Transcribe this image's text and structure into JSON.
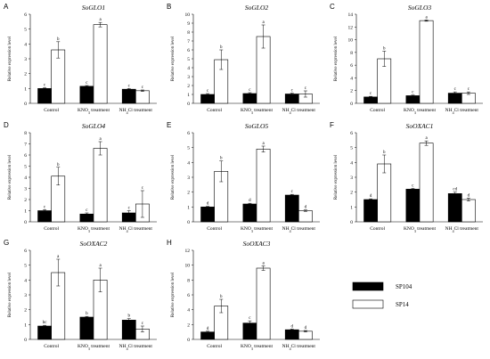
{
  "series_legend": [
    {
      "name": "SP104",
      "color": "#000000"
    },
    {
      "name": "SP14",
      "color": "#ffffff"
    }
  ],
  "chart_data": [
    {
      "letter": "A",
      "type": "bar",
      "title": "SoGLO1",
      "ylabel": "Relative expression level",
      "ylim": [
        0,
        6
      ],
      "ticks": [
        0,
        1,
        2,
        3,
        4,
        5,
        6
      ],
      "categories": [
        "Control",
        "KNO3 treatment",
        "NH4Cl treatment"
      ],
      "series": [
        {
          "name": "SP104",
          "values": [
            1.0,
            1.15,
            0.95
          ],
          "errors": [
            0.05,
            0.05,
            0.05
          ],
          "labels": [
            "c",
            "c",
            "c"
          ]
        },
        {
          "name": "SP14",
          "values": [
            3.6,
            5.3,
            0.85
          ],
          "errors": [
            0.55,
            0.15,
            0.05
          ],
          "labels": [
            "b",
            "a",
            "c"
          ]
        }
      ]
    },
    {
      "letter": "B",
      "type": "bar",
      "title": "SoGLO2",
      "ylabel": "Relative expression level",
      "ylim": [
        0,
        10
      ],
      "ticks": [
        0,
        1,
        2,
        3,
        4,
        5,
        6,
        7,
        8,
        9,
        10
      ],
      "categories": [
        "Control",
        "KNO3 treatment",
        "NH4Cl treatment"
      ],
      "series": [
        {
          "name": "SP104",
          "values": [
            1.0,
            1.1,
            1.05
          ],
          "errors": [
            0.1,
            0.1,
            0.1
          ],
          "labels": [
            "c",
            "c",
            "c"
          ]
        },
        {
          "name": "SP14",
          "values": [
            4.9,
            7.5,
            1.05
          ],
          "errors": [
            1.1,
            1.3,
            0.35
          ],
          "labels": [
            "b",
            "a",
            "c"
          ]
        }
      ]
    },
    {
      "letter": "C",
      "type": "bar",
      "title": "SoGLO3",
      "ylabel": "Relative expression level",
      "ylim": [
        0,
        14
      ],
      "ticks": [
        0,
        2,
        4,
        6,
        8,
        10,
        12,
        14
      ],
      "categories": [
        "Control",
        "KNO3 treatment",
        "NH4Cl treatment"
      ],
      "series": [
        {
          "name": "SP104",
          "values": [
            1.0,
            1.2,
            1.6
          ],
          "errors": [
            0.1,
            0.1,
            0.2
          ],
          "labels": [
            "c",
            "c",
            "c"
          ]
        },
        {
          "name": "SP14",
          "values": [
            7.0,
            13.0,
            1.6
          ],
          "errors": [
            1.2,
            0.1,
            0.2
          ],
          "labels": [
            "b",
            "a",
            "c"
          ]
        }
      ]
    },
    {
      "letter": "D",
      "type": "bar",
      "title": "SoGLO4",
      "ylabel": "Relative expression level",
      "ylim": [
        0,
        8
      ],
      "ticks": [
        0,
        1,
        2,
        3,
        4,
        5,
        6,
        7,
        8
      ],
      "categories": [
        "Control",
        "KNO3 treatment",
        "NH4Cl treatment"
      ],
      "series": [
        {
          "name": "SP104",
          "values": [
            1.0,
            0.7,
            0.8
          ],
          "errors": [
            0.1,
            0.1,
            0.2
          ],
          "labels": [
            "c",
            "c",
            "c"
          ]
        },
        {
          "name": "SP14",
          "values": [
            4.1,
            6.6,
            1.6
          ],
          "errors": [
            0.8,
            0.6,
            1.2
          ],
          "labels": [
            "b",
            "a",
            "c"
          ]
        }
      ]
    },
    {
      "letter": "E",
      "type": "bar",
      "title": "SoGLO5",
      "ylabel": "Relative expression level",
      "ylim": [
        0,
        6
      ],
      "ticks": [
        0,
        1,
        2,
        3,
        4,
        5,
        6
      ],
      "categories": [
        "Control",
        "KNO3 treatment",
        "NH4Cl treatment"
      ],
      "series": [
        {
          "name": "SP104",
          "values": [
            1.0,
            1.2,
            1.8
          ],
          "errors": [
            0.05,
            0.05,
            0.05
          ],
          "labels": [
            "d",
            "d",
            "c"
          ]
        },
        {
          "name": "SP14",
          "values": [
            3.4,
            4.9,
            0.75
          ],
          "errors": [
            0.7,
            0.2,
            0.05
          ],
          "labels": [
            "b",
            "a",
            "d"
          ]
        }
      ]
    },
    {
      "letter": "F",
      "type": "bar",
      "title": "SoOXAC1",
      "ylabel": "Relative expression level",
      "ylim": [
        0,
        6
      ],
      "ticks": [
        0,
        1,
        2,
        3,
        4,
        5,
        6
      ],
      "categories": [
        "Control",
        "KNO3 treatment",
        "NH4Cl treatment"
      ],
      "series": [
        {
          "name": "SP104",
          "values": [
            1.5,
            2.2,
            1.9
          ],
          "errors": [
            0.05,
            0.05,
            0.1
          ],
          "labels": [
            "d",
            "c",
            "cd"
          ]
        },
        {
          "name": "SP14",
          "values": [
            3.9,
            5.3,
            1.5
          ],
          "errors": [
            0.6,
            0.15,
            0.1
          ],
          "labels": [
            "b",
            "a",
            "d"
          ]
        }
      ]
    },
    {
      "letter": "G",
      "type": "bar",
      "title": "SoOXAC2",
      "ylabel": "Relative expression level",
      "ylim": [
        0,
        6
      ],
      "ticks": [
        0,
        1,
        2,
        3,
        4,
        5,
        6
      ],
      "categories": [
        "Control",
        "KNO3 treatment",
        "NH4Cl treatment"
      ],
      "series": [
        {
          "name": "SP104",
          "values": [
            0.9,
            1.5,
            1.3
          ],
          "errors": [
            0.05,
            0.05,
            0.1
          ],
          "labels": [
            "bc",
            "b",
            "b"
          ]
        },
        {
          "name": "SP14",
          "values": [
            4.5,
            4.0,
            0.7
          ],
          "errors": [
            0.9,
            0.8,
            0.2
          ],
          "labels": [
            "a",
            "a",
            "c"
          ]
        }
      ]
    },
    {
      "letter": "H",
      "type": "bar",
      "title": "SoOXAC3",
      "ylabel": "Relative expression level",
      "ylim": [
        0,
        12
      ],
      "ticks": [
        0,
        2,
        4,
        6,
        8,
        10,
        12
      ],
      "categories": [
        "Control",
        "KNO3 treatment",
        "NH4Cl treatment"
      ],
      "series": [
        {
          "name": "SP104",
          "values": [
            1.0,
            2.2,
            1.3
          ],
          "errors": [
            0.1,
            0.3,
            0.1
          ],
          "labels": [
            "d",
            "c",
            "d"
          ]
        },
        {
          "name": "SP14",
          "values": [
            4.5,
            9.6,
            1.1
          ],
          "errors": [
            0.9,
            0.3,
            0.1
          ],
          "labels": [
            "b",
            "a",
            "d"
          ]
        }
      ]
    }
  ]
}
